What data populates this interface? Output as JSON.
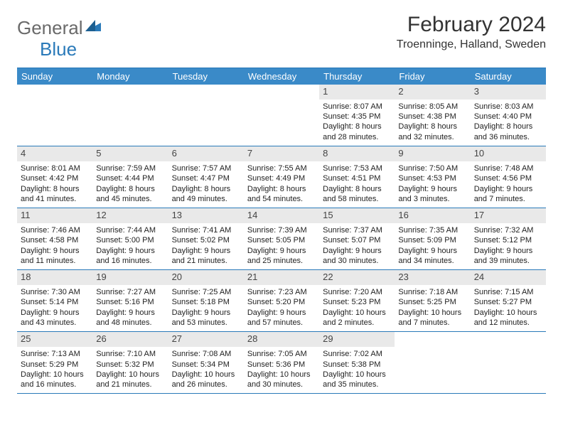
{
  "logo": {
    "word1": "General",
    "word2": "Blue"
  },
  "title": "February 2024",
  "location": "Troenninge, Halland, Sweden",
  "colors": {
    "header_bg": "#3a8ac8",
    "header_text": "#ffffff",
    "border": "#2a7ab9",
    "daynum_bg": "#e9e9e9",
    "logo_gray": "#6a6a6a",
    "logo_blue": "#2a7ab9"
  },
  "day_headers": [
    "Sunday",
    "Monday",
    "Tuesday",
    "Wednesday",
    "Thursday",
    "Friday",
    "Saturday"
  ],
  "weeks": [
    [
      null,
      null,
      null,
      null,
      {
        "n": "1",
        "sr": "Sunrise: 8:07 AM",
        "ss": "Sunset: 4:35 PM",
        "d1": "Daylight: 8 hours",
        "d2": "and 28 minutes."
      },
      {
        "n": "2",
        "sr": "Sunrise: 8:05 AM",
        "ss": "Sunset: 4:38 PM",
        "d1": "Daylight: 8 hours",
        "d2": "and 32 minutes."
      },
      {
        "n": "3",
        "sr": "Sunrise: 8:03 AM",
        "ss": "Sunset: 4:40 PM",
        "d1": "Daylight: 8 hours",
        "d2": "and 36 minutes."
      }
    ],
    [
      {
        "n": "4",
        "sr": "Sunrise: 8:01 AM",
        "ss": "Sunset: 4:42 PM",
        "d1": "Daylight: 8 hours",
        "d2": "and 41 minutes."
      },
      {
        "n": "5",
        "sr": "Sunrise: 7:59 AM",
        "ss": "Sunset: 4:44 PM",
        "d1": "Daylight: 8 hours",
        "d2": "and 45 minutes."
      },
      {
        "n": "6",
        "sr": "Sunrise: 7:57 AM",
        "ss": "Sunset: 4:47 PM",
        "d1": "Daylight: 8 hours",
        "d2": "and 49 minutes."
      },
      {
        "n": "7",
        "sr": "Sunrise: 7:55 AM",
        "ss": "Sunset: 4:49 PM",
        "d1": "Daylight: 8 hours",
        "d2": "and 54 minutes."
      },
      {
        "n": "8",
        "sr": "Sunrise: 7:53 AM",
        "ss": "Sunset: 4:51 PM",
        "d1": "Daylight: 8 hours",
        "d2": "and 58 minutes."
      },
      {
        "n": "9",
        "sr": "Sunrise: 7:50 AM",
        "ss": "Sunset: 4:53 PM",
        "d1": "Daylight: 9 hours",
        "d2": "and 3 minutes."
      },
      {
        "n": "10",
        "sr": "Sunrise: 7:48 AM",
        "ss": "Sunset: 4:56 PM",
        "d1": "Daylight: 9 hours",
        "d2": "and 7 minutes."
      }
    ],
    [
      {
        "n": "11",
        "sr": "Sunrise: 7:46 AM",
        "ss": "Sunset: 4:58 PM",
        "d1": "Daylight: 9 hours",
        "d2": "and 11 minutes."
      },
      {
        "n": "12",
        "sr": "Sunrise: 7:44 AM",
        "ss": "Sunset: 5:00 PM",
        "d1": "Daylight: 9 hours",
        "d2": "and 16 minutes."
      },
      {
        "n": "13",
        "sr": "Sunrise: 7:41 AM",
        "ss": "Sunset: 5:02 PM",
        "d1": "Daylight: 9 hours",
        "d2": "and 21 minutes."
      },
      {
        "n": "14",
        "sr": "Sunrise: 7:39 AM",
        "ss": "Sunset: 5:05 PM",
        "d1": "Daylight: 9 hours",
        "d2": "and 25 minutes."
      },
      {
        "n": "15",
        "sr": "Sunrise: 7:37 AM",
        "ss": "Sunset: 5:07 PM",
        "d1": "Daylight: 9 hours",
        "d2": "and 30 minutes."
      },
      {
        "n": "16",
        "sr": "Sunrise: 7:35 AM",
        "ss": "Sunset: 5:09 PM",
        "d1": "Daylight: 9 hours",
        "d2": "and 34 minutes."
      },
      {
        "n": "17",
        "sr": "Sunrise: 7:32 AM",
        "ss": "Sunset: 5:12 PM",
        "d1": "Daylight: 9 hours",
        "d2": "and 39 minutes."
      }
    ],
    [
      {
        "n": "18",
        "sr": "Sunrise: 7:30 AM",
        "ss": "Sunset: 5:14 PM",
        "d1": "Daylight: 9 hours",
        "d2": "and 43 minutes."
      },
      {
        "n": "19",
        "sr": "Sunrise: 7:27 AM",
        "ss": "Sunset: 5:16 PM",
        "d1": "Daylight: 9 hours",
        "d2": "and 48 minutes."
      },
      {
        "n": "20",
        "sr": "Sunrise: 7:25 AM",
        "ss": "Sunset: 5:18 PM",
        "d1": "Daylight: 9 hours",
        "d2": "and 53 minutes."
      },
      {
        "n": "21",
        "sr": "Sunrise: 7:23 AM",
        "ss": "Sunset: 5:20 PM",
        "d1": "Daylight: 9 hours",
        "d2": "and 57 minutes."
      },
      {
        "n": "22",
        "sr": "Sunrise: 7:20 AM",
        "ss": "Sunset: 5:23 PM",
        "d1": "Daylight: 10 hours",
        "d2": "and 2 minutes."
      },
      {
        "n": "23",
        "sr": "Sunrise: 7:18 AM",
        "ss": "Sunset: 5:25 PM",
        "d1": "Daylight: 10 hours",
        "d2": "and 7 minutes."
      },
      {
        "n": "24",
        "sr": "Sunrise: 7:15 AM",
        "ss": "Sunset: 5:27 PM",
        "d1": "Daylight: 10 hours",
        "d2": "and 12 minutes."
      }
    ],
    [
      {
        "n": "25",
        "sr": "Sunrise: 7:13 AM",
        "ss": "Sunset: 5:29 PM",
        "d1": "Daylight: 10 hours",
        "d2": "and 16 minutes."
      },
      {
        "n": "26",
        "sr": "Sunrise: 7:10 AM",
        "ss": "Sunset: 5:32 PM",
        "d1": "Daylight: 10 hours",
        "d2": "and 21 minutes."
      },
      {
        "n": "27",
        "sr": "Sunrise: 7:08 AM",
        "ss": "Sunset: 5:34 PM",
        "d1": "Daylight: 10 hours",
        "d2": "and 26 minutes."
      },
      {
        "n": "28",
        "sr": "Sunrise: 7:05 AM",
        "ss": "Sunset: 5:36 PM",
        "d1": "Daylight: 10 hours",
        "d2": "and 30 minutes."
      },
      {
        "n": "29",
        "sr": "Sunrise: 7:02 AM",
        "ss": "Sunset: 5:38 PM",
        "d1": "Daylight: 10 hours",
        "d2": "and 35 minutes."
      },
      null,
      null
    ]
  ]
}
